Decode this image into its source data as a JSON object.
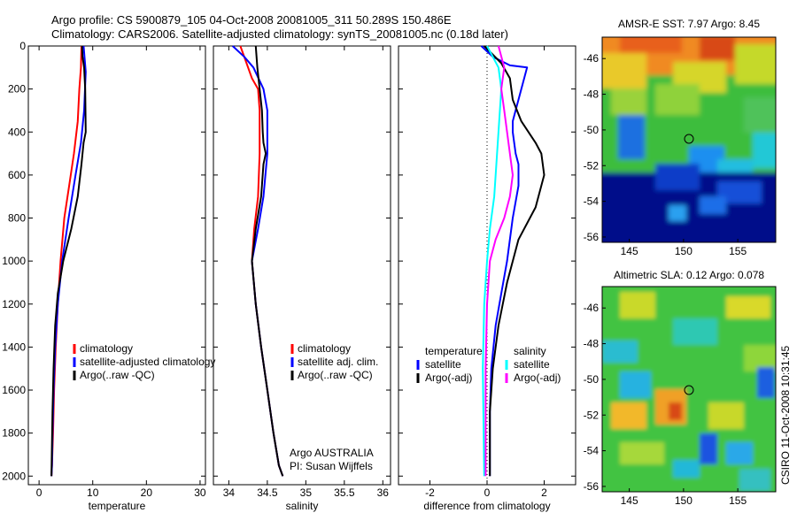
{
  "header": {
    "line1": "Argo profile: CS 5900879_105 04-Oct-2008 20081005_311 50.289S 150.486E",
    "line2": "Climatology: CARS2006. Satellite-adjusted climatology: synTS_20081005.nc (0.18d later)"
  },
  "credit": "CSIRO 11-Oct-2008 10:31:45",
  "colors": {
    "red": "#ff0000",
    "blue": "#0000ff",
    "black": "#000000",
    "cyan": "#00ffff",
    "magenta": "#ff00ff"
  },
  "chart_data": [
    {
      "type": "line",
      "xlabel": "temperature",
      "xlim": [
        -2,
        31
      ],
      "ylim": [
        2040,
        0
      ],
      "x_ticks": [
        0,
        10,
        20,
        30
      ],
      "y_ticks": [
        0,
        200,
        400,
        600,
        800,
        1000,
        1200,
        1400,
        1600,
        1800,
        2000
      ],
      "legend": [
        "climatology",
        "satellite-adjusted climatology",
        "Argo(..raw -QC)"
      ],
      "series": [
        {
          "name": "climatology",
          "color": "#ff0000",
          "x": [
            7.9,
            7.8,
            7.5,
            7.2,
            6.5,
            5.6,
            4.7,
            4.0,
            3.5,
            3.1,
            2.8,
            2.6,
            2.4,
            2.3
          ],
          "y": [
            0,
            100,
            200,
            350,
            500,
            650,
            800,
            1000,
            1200,
            1400,
            1600,
            1800,
            1950,
            2000
          ]
        },
        {
          "name": "satellite-adjusted climatology",
          "color": "#0000ff",
          "x": [
            8.3,
            8.5,
            8.7,
            8.4,
            7.8,
            6.8,
            5.5,
            4.3,
            3.5,
            3.0,
            2.7,
            2.5,
            2.4,
            2.3
          ],
          "y": [
            0,
            60,
            120,
            300,
            450,
            600,
            800,
            1000,
            1200,
            1400,
            1600,
            1800,
            1950,
            2000
          ]
        },
        {
          "name": "Argo(..raw -QC)",
          "color": "#000000",
          "x": [
            8.0,
            8.1,
            8.4,
            8.6,
            8.7,
            8.3,
            7.9,
            7.2,
            6.0,
            4.5,
            3.5,
            3.0,
            2.7,
            2.5,
            2.4,
            2.3
          ],
          "y": [
            0,
            50,
            100,
            200,
            400,
            450,
            550,
            700,
            850,
            1000,
            1150,
            1300,
            1500,
            1700,
            1850,
            2000
          ]
        }
      ]
    },
    {
      "type": "line",
      "xlabel": "salinity",
      "xlim": [
        33.8,
        36.1
      ],
      "ylim": [
        2040,
        0
      ],
      "x_ticks": [
        34,
        34.5,
        35,
        35.5,
        36
      ],
      "legend": [
        "climatology",
        "satellite adj. clim.",
        "Argo(..raw -QC)"
      ],
      "annotation": [
        "Argo AUSTRALIA",
        "PI: Susan Wijffels"
      ],
      "series": [
        {
          "name": "climatology",
          "color": "#ff0000",
          "x": [
            34.15,
            34.2,
            34.3,
            34.38,
            34.4,
            34.4,
            34.38,
            34.33,
            34.3,
            34.35,
            34.42,
            34.5,
            34.58,
            34.65,
            34.7
          ],
          "y": [
            0,
            50,
            150,
            200,
            300,
            500,
            700,
            850,
            1000,
            1200,
            1400,
            1600,
            1800,
            1950,
            2000
          ]
        },
        {
          "name": "satellite adj. clim.",
          "color": "#0000ff",
          "x": [
            34.05,
            34.2,
            34.32,
            34.45,
            34.5,
            34.5,
            34.45,
            34.38,
            34.3,
            34.35,
            34.42,
            34.5,
            34.58,
            34.65,
            34.7
          ],
          "y": [
            0,
            50,
            100,
            200,
            300,
            500,
            700,
            850,
            1000,
            1200,
            1400,
            1600,
            1800,
            1950,
            2000
          ]
        },
        {
          "name": "Argo(..raw -QC)",
          "color": "#000000",
          "x": [
            34.35,
            34.37,
            34.4,
            34.43,
            34.44,
            34.45,
            34.48,
            34.45,
            34.42,
            34.35,
            34.3,
            34.35,
            34.42,
            34.5,
            34.58,
            34.65,
            34.7
          ],
          "y": [
            0,
            100,
            200,
            300,
            400,
            450,
            500,
            550,
            700,
            850,
            1000,
            1200,
            1400,
            1600,
            1800,
            1950,
            2000
          ]
        }
      ]
    },
    {
      "type": "line",
      "xlabel": "difference from climatology",
      "xlim": [
        -3.1,
        3.1
      ],
      "ylim": [
        2040,
        0
      ],
      "x_ticks": [
        -2,
        0,
        2
      ],
      "zero_line": true,
      "legend": [
        "temperature",
        "satellite",
        "Argo(-adj)",
        "salinity",
        "satellite",
        "Argo(-adj)"
      ],
      "series": [
        {
          "name": "temperature satellite",
          "color": "#0000ff",
          "x": [
            -0.2,
            0.2,
            0.8,
            1.4,
            1.2,
            0.9,
            0.9,
            1.0,
            1.1,
            1.1,
            0.9,
            0.8,
            0.7,
            0.5,
            0.3,
            0.15,
            0.1,
            0.1
          ],
          "y": [
            0,
            50,
            90,
            100,
            200,
            350,
            400,
            500,
            550,
            650,
            800,
            900,
            1000,
            1150,
            1300,
            1500,
            1700,
            2000
          ]
        },
        {
          "name": "temperature Argo(-adj)",
          "color": "#000000",
          "x": [
            -0.1,
            0.5,
            0.8,
            0.9,
            1.2,
            1.7,
            1.9,
            2.0,
            1.7,
            1.1,
            0.7,
            0.4,
            0.2,
            0.1,
            0.1
          ],
          "y": [
            0,
            80,
            150,
            250,
            350,
            450,
            500,
            600,
            750,
            900,
            1100,
            1300,
            1500,
            1700,
            2000
          ]
        },
        {
          "name": "salinity satellite",
          "color": "#00ffff",
          "x": [
            0.0,
            0.2,
            0.4,
            0.5,
            0.45,
            0.4,
            0.35,
            0.3,
            0.25,
            0.1,
            0.0,
            -0.1,
            -0.15,
            -0.1
          ],
          "y": [
            0,
            50,
            100,
            200,
            300,
            400,
            500,
            600,
            700,
            850,
            1000,
            1200,
            1500,
            2000
          ]
        },
        {
          "name": "salinity Argo(-adj)",
          "color": "#ff00ff",
          "x": [
            0.4,
            0.6,
            0.5,
            0.6,
            0.7,
            0.8,
            0.9,
            0.8,
            0.6,
            0.3,
            0.1,
            0.0,
            -0.05,
            -0.05
          ],
          "y": [
            0,
            100,
            200,
            300,
            400,
            500,
            600,
            700,
            800,
            900,
            1000,
            1200,
            1500,
            2000
          ]
        }
      ]
    },
    {
      "type": "heatmap",
      "title": "AMSR-E SST: 7.97 Argo: 8.45",
      "xlim": [
        142.5,
        158.5
      ],
      "ylim": [
        -56.3,
        -44.8
      ],
      "x_ticks": [
        145,
        150,
        155
      ],
      "y_ticks": [
        -46,
        -48,
        -50,
        -52,
        -54,
        -56
      ],
      "marker": {
        "lon": 150.486,
        "lat": -50.289
      }
    },
    {
      "type": "heatmap",
      "title": "Altimetric SLA: 0.12 Argo: 0.078",
      "xlim": [
        142.5,
        158.5
      ],
      "ylim": [
        -56.3,
        -44.8
      ],
      "x_ticks": [
        145,
        150,
        155
      ],
      "y_ticks": [
        -46,
        -48,
        -50,
        -52,
        -54,
        -56
      ],
      "marker": {
        "lon": 150.486,
        "lat": -50.289
      }
    }
  ]
}
